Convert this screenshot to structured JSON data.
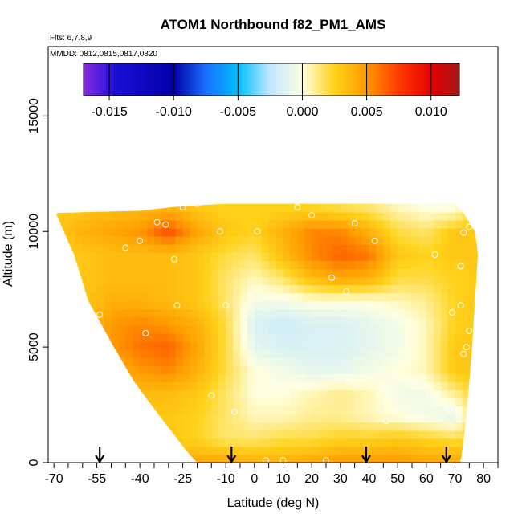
{
  "chart_data": {
    "type": "heatmap",
    "title": "ATOM1 Northbound f82_PM1_AMS",
    "flights_note": "Flts: 6,7,8,9",
    "dates_note": "MMDD: 0812,0815,0817,0820",
    "xlabel": "Latitude (deg N)",
    "ylabel": "Altitude (m)",
    "xlim": [
      -72,
      85
    ],
    "ylim": [
      0,
      18000
    ],
    "x_ticks": [
      -70,
      -55,
      -40,
      -25,
      -10,
      0,
      10,
      20,
      30,
      40,
      50,
      60,
      70,
      80
    ],
    "x_tick_labels": [
      "-70",
      "-55",
      "-40",
      "-25",
      "-10",
      "0",
      "10",
      "20",
      "30",
      "40",
      "50",
      "60",
      "70",
      "80"
    ],
    "x_minor_ticks": [
      -65,
      -60,
      -50,
      -45,
      -35,
      -30,
      -20,
      -15,
      -5,
      5,
      15,
      25,
      35,
      45,
      55,
      65,
      75,
      85
    ],
    "y_ticks": [
      0,
      5000,
      10000,
      15000
    ],
    "y_tick_labels": [
      "0",
      "5000",
      "10000",
      "15000"
    ],
    "colorbar": {
      "range": [
        -0.017,
        0.0122
      ],
      "ticks": [
        -0.015,
        -0.01,
        -0.005,
        0.0,
        0.005,
        0.01
      ],
      "tick_labels": [
        "-0.015",
        "-0.010",
        "-0.005",
        "0.000",
        "0.005",
        "0.010"
      ],
      "stops": [
        {
          "v": -0.017,
          "color": "#8a2be2"
        },
        {
          "v": -0.0145,
          "color": "#1a0fd6"
        },
        {
          "v": -0.01,
          "color": "#0000a8"
        },
        {
          "v": -0.0075,
          "color": "#1a70ff"
        },
        {
          "v": -0.005,
          "color": "#00bfff"
        },
        {
          "v": -0.0025,
          "color": "#bfe8ff"
        },
        {
          "v": 0.0,
          "color": "#ffffe0"
        },
        {
          "v": 0.0025,
          "color": "#ffd21a"
        },
        {
          "v": 0.005,
          "color": "#ff9a00"
        },
        {
          "v": 0.0075,
          "color": "#ff3a00"
        },
        {
          "v": 0.01,
          "color": "#e60000"
        },
        {
          "v": 0.0122,
          "color": "#a01818"
        }
      ]
    },
    "arrow_latitudes": [
      -54,
      -8,
      39,
      67
    ],
    "curtain_outline": {
      "top_profile": [
        [
          -69,
          10800
        ],
        [
          -40,
          10900
        ],
        [
          -25,
          11100
        ],
        [
          -10,
          11200
        ],
        [
          10,
          11200
        ],
        [
          40,
          11200
        ],
        [
          70,
          11200
        ],
        [
          73,
          10800
        ],
        [
          77,
          10000
        ],
        [
          78,
          9000
        ]
      ],
      "bottom_profile": [
        [
          -69,
          10700
        ],
        [
          -63,
          9000
        ],
        [
          -58,
          7000
        ],
        [
          -50,
          5200
        ],
        [
          -42,
          3500
        ],
        [
          -33,
          2000
        ],
        [
          -28,
          1200
        ],
        [
          -23,
          400
        ],
        [
          -20,
          0
        ],
        [
          72,
          0
        ],
        [
          74,
          2000
        ],
        [
          76,
          5000
        ],
        [
          78,
          9000
        ]
      ]
    },
    "grid": {
      "lat": [
        -69,
        -60,
        -50,
        -40,
        -30,
        -20,
        -10,
        0,
        10,
        20,
        30,
        40,
        50,
        60,
        70,
        80
      ],
      "alt": [
        0,
        1000,
        2000,
        3000,
        4000,
        5000,
        6000,
        7000,
        8000,
        9000,
        10000,
        11000
      ],
      "values": [
        [
          0.004,
          0.004,
          0.004,
          0.004,
          0.004,
          0.0045,
          0.0045,
          0.004,
          0.004,
          0.0045,
          0.005,
          0.005,
          0.005,
          0.0045,
          0.0045,
          0.004
        ],
        [
          0.003,
          0.003,
          0.003,
          0.003,
          0.003,
          0.0025,
          0.0015,
          0.0015,
          0.002,
          0.002,
          0.0025,
          0.0025,
          0.003,
          0.0025,
          0.002,
          0.003
        ],
        [
          0.003,
          0.003,
          0.003,
          0.003,
          0.003,
          0.0025,
          0.0015,
          0.0005,
          0.0005,
          0.001,
          0.001,
          0.0005,
          0.0,
          -0.0005,
          -0.001,
          0.003
        ],
        [
          0.003,
          0.003,
          0.003,
          0.0035,
          0.0035,
          0.003,
          0.0015,
          0.0,
          0.0,
          0.0005,
          0.001,
          0.0005,
          -0.0005,
          -0.0005,
          0.001,
          0.003
        ],
        [
          0.003,
          0.003,
          0.004,
          0.005,
          0.0055,
          0.004,
          0.002,
          0.0,
          -0.0005,
          -0.001,
          -0.001,
          -0.0005,
          0.0,
          0.0005,
          0.003,
          0.003
        ],
        [
          0.003,
          0.003,
          0.005,
          0.006,
          0.0065,
          0.0045,
          0.002,
          -0.001,
          -0.0015,
          -0.0015,
          -0.0015,
          -0.001,
          -0.0005,
          0.0005,
          0.003,
          0.003
        ],
        [
          0.0025,
          0.003,
          0.005,
          0.0055,
          0.005,
          0.004,
          0.002,
          -0.0015,
          -0.002,
          -0.0015,
          -0.0015,
          -0.001,
          -0.0005,
          0.0005,
          0.0025,
          0.003
        ],
        [
          0.0025,
          0.003,
          0.004,
          0.004,
          0.0035,
          0.003,
          0.0015,
          -0.0005,
          -0.0005,
          0.0,
          0.0,
          0.0,
          0.0005,
          0.001,
          0.0025,
          0.003
        ],
        [
          0.0025,
          0.003,
          0.0035,
          0.0035,
          0.0035,
          0.003,
          0.0015,
          0.0005,
          0.0015,
          0.0035,
          0.0045,
          0.004,
          0.002,
          0.002,
          0.0025,
          0.003
        ],
        [
          0.0025,
          0.003,
          0.0035,
          0.0035,
          0.0035,
          0.003,
          0.002,
          0.0015,
          0.0035,
          0.0055,
          0.0065,
          0.006,
          0.003,
          0.0025,
          0.003,
          0.003
        ],
        [
          0.003,
          0.004,
          0.0045,
          0.005,
          0.007,
          0.0045,
          0.003,
          0.0025,
          0.004,
          0.0055,
          0.0055,
          0.004,
          0.002,
          0.0015,
          0.003,
          0.003
        ],
        [
          0.003,
          0.003,
          0.0035,
          0.0035,
          0.004,
          0.003,
          0.0025,
          0.0025,
          0.0025,
          0.0025,
          0.002,
          0.0015,
          0.0005,
          0.0,
          0.0,
          0.003
        ]
      ]
    },
    "sample_points": [
      [
        -38,
        5600
      ],
      [
        -27,
        6800
      ],
      [
        -54,
        6400
      ],
      [
        -45,
        9300
      ],
      [
        -40,
        9600
      ],
      [
        -34,
        10400
      ],
      [
        -31,
        10300
      ],
      [
        -28,
        8800
      ],
      [
        -25,
        11050
      ],
      [
        -20,
        11200
      ],
      [
        -12,
        10000
      ],
      [
        -10,
        6800
      ],
      [
        -15,
        2900
      ],
      [
        -7,
        2200
      ],
      [
        -3,
        6700
      ],
      [
        1,
        10000
      ],
      [
        4,
        100
      ],
      [
        10,
        100
      ],
      [
        15,
        11050
      ],
      [
        20,
        10700
      ],
      [
        25,
        100
      ],
      [
        27,
        8000
      ],
      [
        33,
        3500
      ],
      [
        32,
        7400
      ],
      [
        35,
        10350
      ],
      [
        42,
        9600
      ],
      [
        46,
        1800
      ],
      [
        63,
        9000
      ],
      [
        68,
        2300
      ],
      [
        69,
        6500
      ],
      [
        72,
        6800
      ],
      [
        72,
        8500
      ],
      [
        73,
        9950
      ],
      [
        75,
        10200
      ],
      [
        72,
        11150
      ],
      [
        74,
        5000
      ],
      [
        75,
        5700
      ],
      [
        76,
        2000
      ],
      [
        73,
        4700
      ],
      [
        79,
        9900
      ],
      [
        81,
        6800
      ],
      [
        73,
        100
      ]
    ]
  }
}
